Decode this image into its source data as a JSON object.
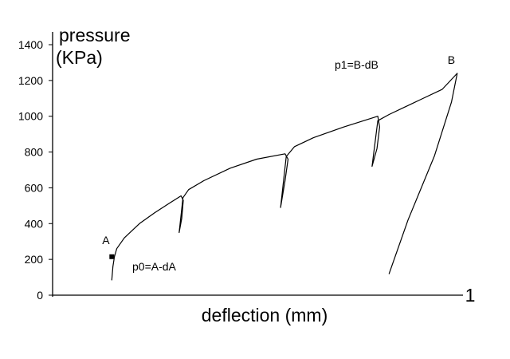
{
  "chart_data": {
    "type": "line",
    "title": "",
    "xlabel": "deflection (mm)",
    "ylabel_line1": "pressure",
    "ylabel_line2": "(KPa)",
    "x_tick_labels": [
      {
        "x": 1,
        "label": "1"
      }
    ],
    "xlim": [
      0,
      1
    ],
    "ylim": [
      0,
      1400
    ],
    "y_ticks": [
      0,
      200,
      400,
      600,
      800,
      1000,
      1200,
      1400
    ],
    "grid": false,
    "legend": "none",
    "series": [
      {
        "color": "#000000",
        "x": [
          0.087,
          0.09,
          0.094,
          0.1,
          0.12,
          0.16,
          0.2,
          0.24,
          0.27,
          0.276,
          0.272,
          0.265,
          0.275,
          0.29,
          0.33,
          0.4,
          0.47,
          0.545,
          0.553,
          0.545,
          0.533,
          0.548,
          0.57,
          0.62,
          0.7,
          0.79,
          0.795,
          0.788,
          0.775,
          0.79,
          0.82,
          0.9,
          0.96,
          1.0,
          0.985,
          0.94,
          0.87,
          0.82
        ],
        "y": [
          85,
          160,
          215,
          260,
          320,
          400,
          460,
          515,
          555,
          530,
          430,
          350,
          545,
          590,
          640,
          710,
          760,
          790,
          760,
          640,
          490,
          775,
          830,
          880,
          940,
          1000,
          940,
          820,
          720,
          975,
          1010,
          1090,
          1150,
          1240,
          1080,
          780,
          420,
          120
        ]
      }
    ],
    "annotations": [
      {
        "text": "A",
        "x": 0.087,
        "y": 215,
        "marker": true
      },
      {
        "text": "B",
        "x": 1.0,
        "y": 1240,
        "marker": false
      },
      {
        "text": "p0=A-dA"
      },
      {
        "text": "p1=B-dB"
      }
    ]
  }
}
